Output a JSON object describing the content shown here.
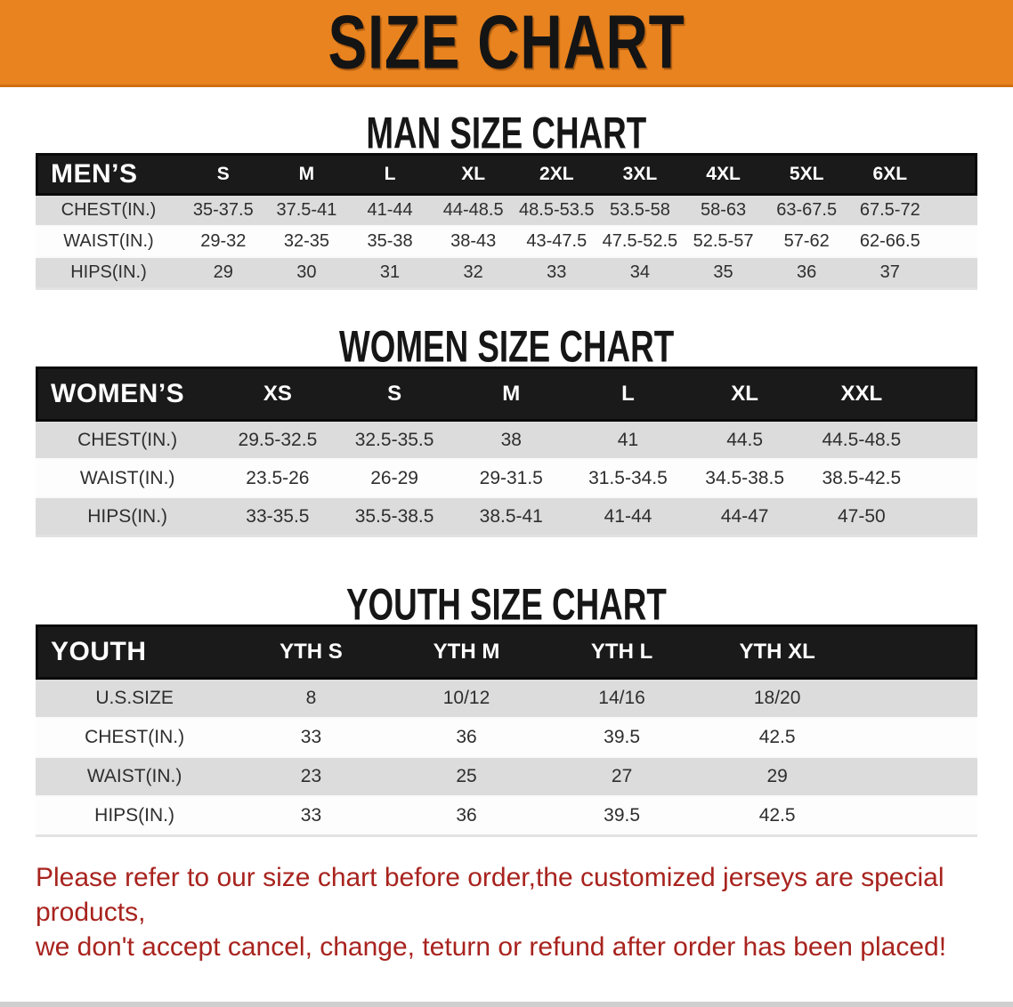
{
  "banner": {
    "title": "SIZE CHART",
    "bg_color": "#e8831f",
    "text_color": "#141414"
  },
  "colors": {
    "table_header_bg": "#1a1a1a",
    "row_gray": "#dcdcdc",
    "row_white": "#fdfdfd",
    "footer_red": "#a8231e"
  },
  "sections": [
    {
      "heading": "MAN SIZE CHART",
      "table": {
        "header": [
          "MEN’S",
          "S",
          "M",
          "L",
          "XL",
          "2XL",
          "3XL",
          "4XL",
          "5XL",
          "6XL"
        ],
        "rows": [
          {
            "label": "CHEST(IN.)",
            "values": [
              "35-37.5",
              "37.5-41",
              "41-44",
              "44-48.5",
              "48.5-53.5",
              "53.5-58",
              "58-63",
              "63-67.5",
              "67.5-72"
            ]
          },
          {
            "label": "WAIST(IN.)",
            "values": [
              "29-32",
              "32-35",
              "35-38",
              "38-43",
              "43-47.5",
              "47.5-52.5",
              "52.5-57",
              "57-62",
              "62-66.5"
            ]
          },
          {
            "label": "HIPS(IN.)",
            "values": [
              "29",
              "30",
              "31",
              "32",
              "33",
              "34",
              "35",
              "36",
              "37"
            ]
          }
        ]
      }
    },
    {
      "heading": "WOMEN SIZE CHART",
      "table": {
        "header": [
          "WOMEN’S",
          "XS",
          "S",
          "M",
          "L",
          "XL",
          "XXL"
        ],
        "rows": [
          {
            "label": "CHEST(IN.)",
            "values": [
              "29.5-32.5",
              "32.5-35.5",
              "38",
              "41",
              "44.5",
              "44.5-48.5"
            ]
          },
          {
            "label": "WAIST(IN.)",
            "values": [
              "23.5-26",
              "26-29",
              "29-31.5",
              "31.5-34.5",
              "34.5-38.5",
              "38.5-42.5"
            ]
          },
          {
            "label": "HIPS(IN.)",
            "values": [
              "33-35.5",
              "35.5-38.5",
              "38.5-41",
              "41-44",
              "44-47",
              "47-50"
            ]
          }
        ]
      }
    },
    {
      "heading": "YOUTH SIZE CHART",
      "table": {
        "header": [
          "YOUTH",
          "YTH S",
          "YTH M",
          "YTH L",
          "YTH XL"
        ],
        "rows": [
          {
            "label": "U.S.SIZE",
            "values": [
              "8",
              "10/12",
              "14/16",
              "18/20"
            ]
          },
          {
            "label": "CHEST(IN.)",
            "values": [
              "33",
              "36",
              "39.5",
              "42.5"
            ]
          },
          {
            "label": "WAIST(IN.)",
            "values": [
              "23",
              "25",
              "27",
              "29"
            ]
          },
          {
            "label": "HIPS(IN.)",
            "values": [
              "33",
              "36",
              "39.5",
              "42.5"
            ]
          }
        ]
      }
    }
  ],
  "footer": {
    "line1": "Please refer to our size chart before order,the customized jerseys are special products,",
    "line2": "we don't accept cancel, change, teturn or refund after order has been placed!"
  }
}
